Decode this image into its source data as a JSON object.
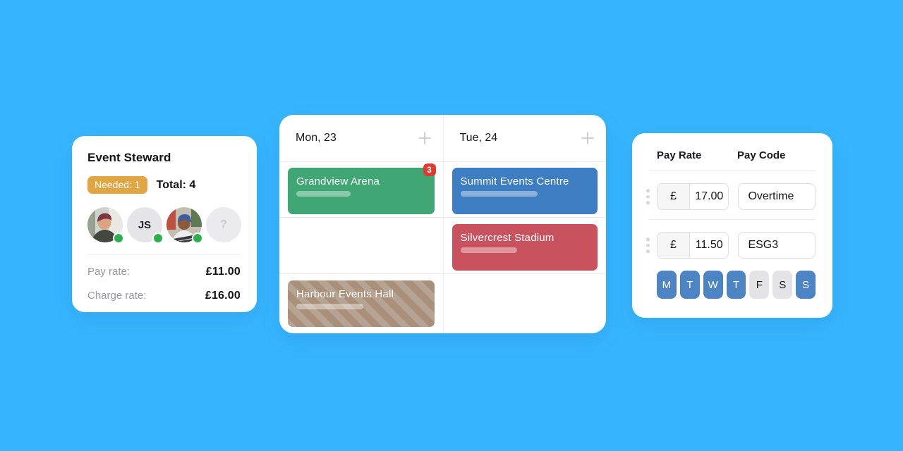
{
  "colors": {
    "background": "#36b5fd",
    "event_green": "#3fa674",
    "event_blue": "#3d7ec3",
    "event_red": "#c9525f",
    "event_tan": "#a8907b",
    "count_badge_red": "#e03a31",
    "needed_badge_amber": "#e0a644",
    "day_selected_blue": "#4d84c4",
    "online_dot_green": "#2db14f"
  },
  "icons": {
    "add_shift": "+",
    "drag_handle": "vertical-dots",
    "unassigned_slot": "?"
  },
  "role_card": {
    "title": "Event Steward",
    "needed_badge": "Needed: 1",
    "total_label": "Total: 4",
    "avatars": [
      {
        "kind": "photo",
        "online": true
      },
      {
        "kind": "initials",
        "label": "JS",
        "online": true
      },
      {
        "kind": "photo",
        "online": true
      },
      {
        "kind": "placeholder",
        "label": "?",
        "online": false
      }
    ],
    "rates": [
      {
        "label": "Pay rate:",
        "value": "£11.00"
      },
      {
        "label": "Charge rate:",
        "value": "£16.00"
      }
    ]
  },
  "schedule_card": {
    "columns": [
      {
        "header": "Mon, 23",
        "cells": [
          {
            "type": "event",
            "title": "Grandview Arena",
            "style": "green",
            "badge": "3",
            "progress": 42
          },
          {
            "type": "empty"
          },
          {
            "type": "event",
            "title": "Harbour Events Hall",
            "style": "tan-striped",
            "progress": 52
          }
        ]
      },
      {
        "header": "Tue, 24",
        "cells": [
          {
            "type": "event",
            "title": "Summit Events Centre",
            "style": "blue",
            "progress": 60
          },
          {
            "type": "event",
            "title": "Silvercrest Stadium",
            "style": "red",
            "progress": 44
          },
          {
            "type": "empty"
          }
        ]
      }
    ]
  },
  "pay_card": {
    "headers": [
      "Pay Rate",
      "Pay Code"
    ],
    "rows": [
      {
        "currency": "£",
        "rate": "17.00",
        "code": "Overtime"
      },
      {
        "currency": "£",
        "rate": "11.50",
        "code": "ESG3"
      }
    ],
    "days": [
      {
        "label": "M",
        "selected": true
      },
      {
        "label": "T",
        "selected": true
      },
      {
        "label": "W",
        "selected": true
      },
      {
        "label": "T",
        "selected": true
      },
      {
        "label": "F",
        "selected": false
      },
      {
        "label": "S",
        "selected": false
      },
      {
        "label": "S",
        "selected": true
      }
    ]
  }
}
